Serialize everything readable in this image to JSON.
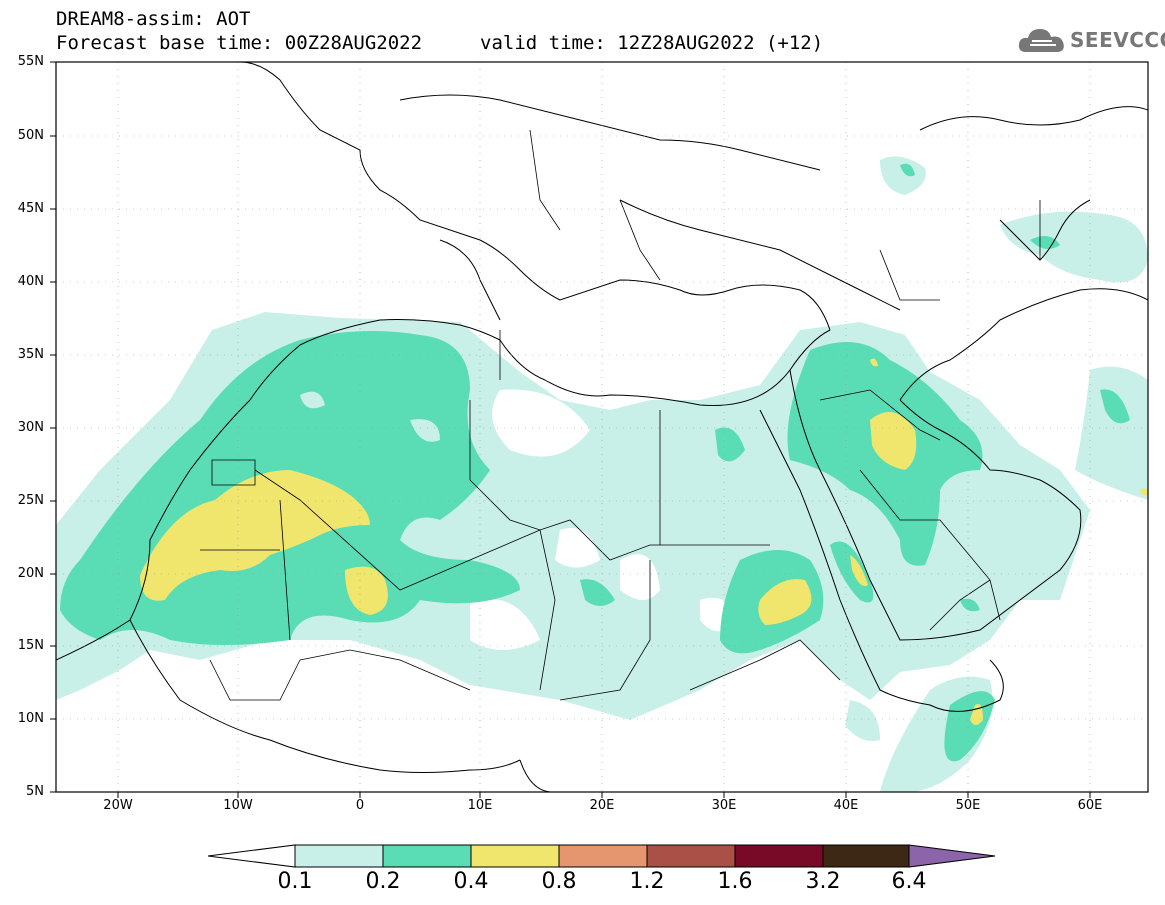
{
  "header": {
    "title": "DREAM8-assim: AOT",
    "base_time": "Forecast base time: 00Z28AUG2022",
    "valid_time": "valid time: 12Z28AUG2022 (+12)"
  },
  "logo": {
    "text": "SEEVCCC",
    "icon": "cloud-icon",
    "color": "#777777"
  },
  "axes": {
    "lat_labels": [
      "55N",
      "50N",
      "45N",
      "40N",
      "35N",
      "30N",
      "25N",
      "20N",
      "15N",
      "10N",
      "5N"
    ],
    "lon_labels": [
      "20W",
      "10W",
      "0",
      "10E",
      "20E",
      "30E",
      "40E",
      "50E",
      "60E"
    ]
  },
  "colorbar": {
    "labels": [
      "0.1",
      "0.2",
      "0.4",
      "0.8",
      "1.2",
      "1.6",
      "3.2",
      "6.4"
    ],
    "colors": [
      "#ffffff",
      "#c8f0e8",
      "#5adcb4",
      "#f0e66e",
      "#e6966e",
      "#aa5046",
      "#780a28",
      "#3c2814",
      "#8c64aa"
    ]
  }
}
